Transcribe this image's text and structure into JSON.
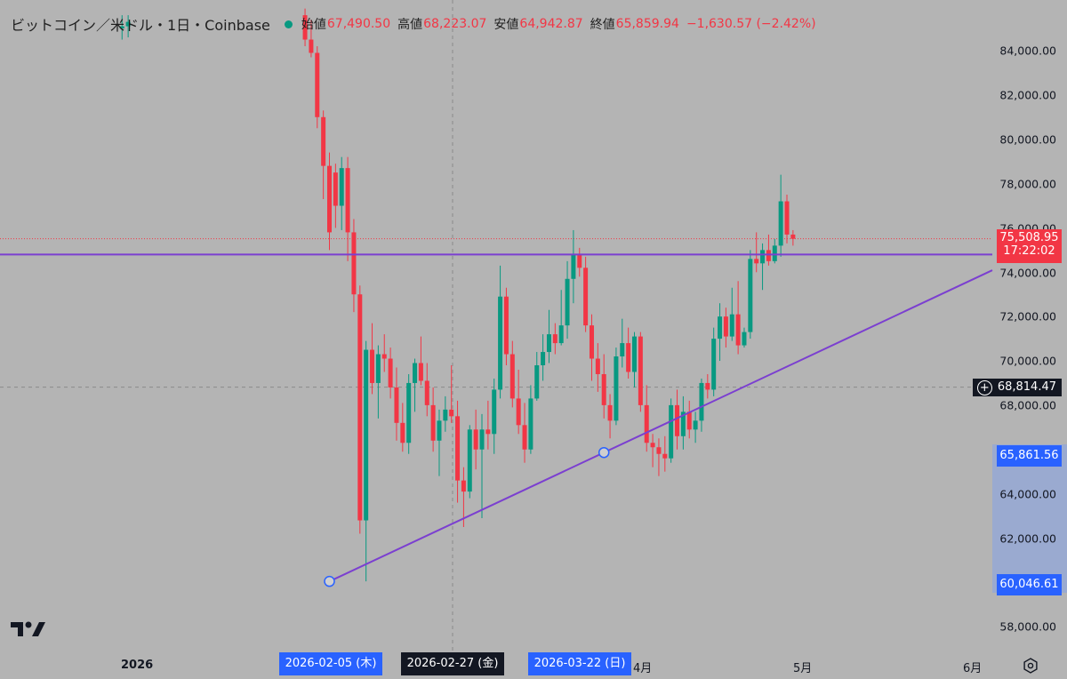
{
  "header": {
    "title": "ビットコイン／米ドル・1日・Coinbase",
    "open_label": "始値",
    "open_value": "67,490.50",
    "high_label": "高値",
    "high_value": "68,223.07",
    "low_label": "安値",
    "low_value": "64,942.87",
    "close_label": "終値",
    "close_value": "65,859.94",
    "change": "−1,630.57 (−2.42%)"
  },
  "price_axis": {
    "ticks": [
      "84,000.00",
      "82,000.00",
      "80,000.00",
      "78,000.00",
      "76,000.00",
      "74,000.00",
      "72,000.00",
      "70,000.00",
      "68,000.00",
      "64,000.00",
      "62,000.00",
      "58,000.00"
    ],
    "current_price": "75,508.95",
    "countdown": "17:22:02",
    "crosshair_price": "68,814.47",
    "range_high": "65,861.56",
    "range_low": "60,046.61"
  },
  "time_axis": {
    "labels": [
      "2026",
      "4月",
      "5月",
      "6月"
    ],
    "selected": [
      "2026-02-05 (木)",
      "2026-02-27 (金)",
      "2026-03-22 (日)"
    ]
  },
  "colors": {
    "up": "#089981",
    "down": "#f23645",
    "drawing": "#7b3fd0",
    "selection": "#2962ff",
    "background": "#b4b4b4"
  },
  "chart_data": {
    "type": "candlestick",
    "symbol": "BTC/USD",
    "interval": "1D",
    "exchange": "Coinbase",
    "ylim": [
      57000,
      85500
    ],
    "current_price": 75508.95,
    "crosshair_price": 68814.47,
    "horizontal_line": 74800,
    "trend_line": [
      {
        "date": "2026-02-05",
        "price": 60046.61
      },
      {
        "date": "2026-03-22",
        "price": 65861.56
      }
    ],
    "candles": [
      {
        "date": "2026-01-02",
        "o": 85000,
        "h": 85600,
        "l": 84500,
        "c": 85100
      },
      {
        "date": "2026-01-03",
        "o": 85100,
        "h": 85600,
        "l": 84600,
        "c": 85300
      },
      {
        "date": "2026-02-01",
        "o": 85600,
        "h": 85900,
        "l": 84200,
        "c": 84500
      },
      {
        "date": "2026-02-02",
        "o": 84500,
        "h": 85400,
        "l": 83700,
        "c": 83900
      },
      {
        "date": "2026-02-03",
        "o": 83900,
        "h": 84200,
        "l": 80500,
        "c": 81000
      },
      {
        "date": "2026-02-04",
        "o": 81000,
        "h": 81300,
        "l": 77300,
        "c": 78800
      },
      {
        "date": "2026-02-05",
        "o": 78800,
        "h": 79400,
        "l": 75000,
        "c": 75800
      },
      {
        "date": "2026-02-06",
        "o": 78500,
        "h": 78900,
        "l": 76000,
        "c": 77000
      },
      {
        "date": "2026-02-07",
        "o": 77000,
        "h": 79200,
        "l": 75900,
        "c": 78700
      },
      {
        "date": "2026-02-08",
        "o": 78700,
        "h": 79200,
        "l": 74500,
        "c": 75800
      },
      {
        "date": "2026-02-09",
        "o": 75800,
        "h": 76400,
        "l": 72200,
        "c": 73000
      },
      {
        "date": "2026-02-10",
        "o": 73000,
        "h": 73400,
        "l": 62200,
        "c": 62800
      },
      {
        "date": "2026-02-11",
        "o": 62800,
        "h": 70900,
        "l": 60046,
        "c": 70500
      },
      {
        "date": "2026-02-12",
        "o": 70500,
        "h": 71700,
        "l": 68500,
        "c": 69000
      },
      {
        "date": "2026-02-13",
        "o": 69000,
        "h": 70700,
        "l": 67400,
        "c": 70300
      },
      {
        "date": "2026-02-14",
        "o": 70300,
        "h": 71200,
        "l": 69500,
        "c": 70100
      },
      {
        "date": "2026-02-15",
        "o": 70100,
        "h": 70600,
        "l": 68300,
        "c": 68800
      },
      {
        "date": "2026-02-16",
        "o": 68800,
        "h": 69700,
        "l": 66400,
        "c": 67200
      },
      {
        "date": "2026-02-17",
        "o": 67200,
        "h": 68100,
        "l": 65900,
        "c": 66300
      },
      {
        "date": "2026-02-18",
        "o": 66300,
        "h": 69400,
        "l": 65800,
        "c": 69000
      },
      {
        "date": "2026-02-19",
        "o": 69000,
        "h": 70100,
        "l": 67700,
        "c": 69900
      },
      {
        "date": "2026-02-20",
        "o": 69900,
        "h": 71100,
        "l": 68900,
        "c": 69100
      },
      {
        "date": "2026-02-21",
        "o": 69100,
        "h": 69900,
        "l": 67500,
        "c": 68000
      },
      {
        "date": "2026-02-22",
        "o": 68000,
        "h": 68800,
        "l": 65900,
        "c": 66400
      },
      {
        "date": "2026-02-23",
        "o": 66400,
        "h": 67800,
        "l": 64800,
        "c": 67300
      },
      {
        "date": "2026-02-24",
        "o": 67300,
        "h": 68400,
        "l": 66800,
        "c": 67800
      },
      {
        "date": "2026-02-25",
        "o": 67800,
        "h": 69800,
        "l": 67200,
        "c": 67500
      },
      {
        "date": "2026-02-26",
        "o": 67500,
        "h": 68200,
        "l": 63600,
        "c": 64600
      },
      {
        "date": "2026-02-27",
        "o": 64600,
        "h": 65200,
        "l": 62500,
        "c": 64100
      },
      {
        "date": "2026-02-28",
        "o": 64100,
        "h": 67100,
        "l": 63800,
        "c": 66900
      },
      {
        "date": "2026-03-01",
        "o": 66900,
        "h": 67800,
        "l": 65100,
        "c": 66000
      },
      {
        "date": "2026-03-02",
        "o": 66000,
        "h": 67600,
        "l": 62900,
        "c": 66900
      },
      {
        "date": "2026-03-03",
        "o": 66900,
        "h": 68200,
        "l": 66000,
        "c": 66700
      },
      {
        "date": "2026-03-04",
        "o": 66700,
        "h": 69200,
        "l": 65800,
        "c": 68700
      },
      {
        "date": "2026-03-05",
        "o": 68700,
        "h": 74300,
        "l": 68300,
        "c": 72900
      },
      {
        "date": "2026-03-06",
        "o": 72900,
        "h": 73300,
        "l": 69800,
        "c": 70300
      },
      {
        "date": "2026-03-07",
        "o": 70300,
        "h": 70900,
        "l": 67900,
        "c": 68300
      },
      {
        "date": "2026-03-08",
        "o": 68300,
        "h": 69600,
        "l": 66700,
        "c": 67100
      },
      {
        "date": "2026-03-09",
        "o": 67100,
        "h": 68100,
        "l": 65400,
        "c": 66000
      },
      {
        "date": "2026-03-10",
        "o": 66000,
        "h": 68900,
        "l": 65800,
        "c": 68300
      },
      {
        "date": "2026-03-11",
        "o": 68300,
        "h": 70400,
        "l": 68200,
        "c": 69800
      },
      {
        "date": "2026-03-12",
        "o": 69800,
        "h": 71200,
        "l": 69100,
        "c": 70400
      },
      {
        "date": "2026-03-13",
        "o": 70400,
        "h": 72300,
        "l": 69900,
        "c": 71200
      },
      {
        "date": "2026-03-14",
        "o": 71200,
        "h": 71700,
        "l": 70300,
        "c": 70800
      },
      {
        "date": "2026-03-15",
        "o": 70800,
        "h": 73200,
        "l": 70700,
        "c": 71600
      },
      {
        "date": "2026-03-16",
        "o": 71600,
        "h": 74500,
        "l": 71000,
        "c": 73700
      },
      {
        "date": "2026-03-17",
        "o": 73700,
        "h": 75900,
        "l": 72600,
        "c": 74800
      },
      {
        "date": "2026-03-18",
        "o": 74800,
        "h": 75100,
        "l": 73800,
        "c": 74200
      },
      {
        "date": "2026-03-19",
        "o": 74200,
        "h": 74700,
        "l": 71300,
        "c": 71600
      },
      {
        "date": "2026-03-20",
        "o": 71600,
        "h": 72100,
        "l": 69100,
        "c": 70100
      },
      {
        "date": "2026-03-21",
        "o": 70100,
        "h": 70800,
        "l": 68600,
        "c": 69400
      },
      {
        "date": "2026-03-22",
        "o": 69400,
        "h": 70300,
        "l": 67400,
        "c": 68000
      },
      {
        "date": "2026-03-23",
        "o": 68000,
        "h": 68500,
        "l": 66500,
        "c": 67300
      },
      {
        "date": "2026-03-24",
        "o": 67300,
        "h": 70600,
        "l": 67100,
        "c": 70200
      },
      {
        "date": "2026-03-25",
        "o": 70200,
        "h": 71900,
        "l": 69700,
        "c": 70800
      },
      {
        "date": "2026-03-26",
        "o": 70800,
        "h": 71500,
        "l": 69200,
        "c": 69500
      },
      {
        "date": "2026-03-27",
        "o": 69500,
        "h": 71300,
        "l": 68800,
        "c": 71100
      },
      {
        "date": "2026-03-28",
        "o": 71100,
        "h": 71300,
        "l": 67700,
        "c": 68000
      },
      {
        "date": "2026-03-29",
        "o": 68000,
        "h": 68900,
        "l": 65900,
        "c": 66300
      },
      {
        "date": "2026-03-30",
        "o": 66300,
        "h": 66700,
        "l": 65200,
        "c": 66100
      },
      {
        "date": "2026-03-31",
        "o": 66100,
        "h": 66500,
        "l": 64800,
        "c": 65800
      },
      {
        "date": "2026-04-01",
        "o": 65800,
        "h": 66600,
        "l": 65000,
        "c": 65600
      },
      {
        "date": "2026-04-02",
        "o": 65600,
        "h": 68300,
        "l": 65400,
        "c": 68000
      },
      {
        "date": "2026-04-03",
        "o": 68000,
        "h": 68700,
        "l": 66000,
        "c": 66600
      },
      {
        "date": "2026-04-04",
        "o": 66600,
        "h": 68400,
        "l": 66000,
        "c": 67700
      },
      {
        "date": "2026-04-05",
        "o": 67700,
        "h": 68200,
        "l": 66500,
        "c": 66900
      },
      {
        "date": "2026-04-06",
        "o": 66900,
        "h": 67700,
        "l": 66300,
        "c": 67300
      },
      {
        "date": "2026-04-07",
        "o": 67300,
        "h": 69200,
        "l": 66800,
        "c": 69000
      },
      {
        "date": "2026-04-08",
        "o": 69000,
        "h": 69400,
        "l": 68300,
        "c": 68700
      },
      {
        "date": "2026-04-09",
        "o": 68700,
        "h": 71500,
        "l": 68400,
        "c": 71000
      },
      {
        "date": "2026-04-10",
        "o": 71000,
        "h": 72600,
        "l": 70000,
        "c": 72000
      },
      {
        "date": "2026-04-11",
        "o": 72000,
        "h": 72400,
        "l": 70600,
        "c": 71100
      },
      {
        "date": "2026-04-12",
        "o": 71100,
        "h": 73300,
        "l": 70900,
        "c": 72100
      },
      {
        "date": "2026-04-13",
        "o": 72100,
        "h": 73600,
        "l": 70300,
        "c": 70700
      },
      {
        "date": "2026-04-14",
        "o": 70700,
        "h": 71500,
        "l": 70600,
        "c": 71300
      },
      {
        "date": "2026-04-15",
        "o": 71300,
        "h": 75000,
        "l": 71000,
        "c": 74600
      },
      {
        "date": "2026-04-16",
        "o": 74600,
        "h": 75800,
        "l": 74000,
        "c": 74400
      },
      {
        "date": "2026-04-17",
        "o": 74400,
        "h": 75300,
        "l": 73200,
        "c": 75000
      },
      {
        "date": "2026-04-18",
        "o": 75000,
        "h": 75700,
        "l": 74300,
        "c": 74500
      },
      {
        "date": "2026-04-19",
        "o": 74500,
        "h": 75500,
        "l": 74400,
        "c": 75200
      },
      {
        "date": "2026-04-20",
        "o": 75200,
        "h": 78400,
        "l": 74700,
        "c": 77200
      },
      {
        "date": "2026-04-21",
        "o": 77200,
        "h": 77500,
        "l": 75300,
        "c": 75700
      },
      {
        "date": "2026-04-22",
        "o": 75700,
        "h": 75900,
        "l": 75200,
        "c": 75509
      }
    ]
  }
}
